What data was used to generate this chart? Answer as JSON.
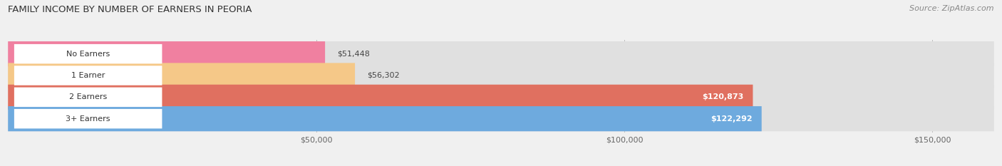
{
  "title": "FAMILY INCOME BY NUMBER OF EARNERS IN PEORIA",
  "source": "Source: ZipAtlas.com",
  "categories": [
    "No Earners",
    "1 Earner",
    "2 Earners",
    "3+ Earners"
  ],
  "values": [
    51448,
    56302,
    120873,
    122292
  ],
  "bar_colors": [
    "#f080a0",
    "#f5c888",
    "#e07060",
    "#6eaade"
  ],
  "label_colors": [
    "#555555",
    "#555555",
    "#ffffff",
    "#ffffff"
  ],
  "background_color": "#f0f0f0",
  "bar_bg_color": "#e0e0e0",
  "xlim": [
    0,
    160000
  ],
  "xticks": [
    50000,
    100000,
    150000
  ],
  "xtick_labels": [
    "$50,000",
    "$100,000",
    "$150,000"
  ],
  "bar_height": 0.58,
  "figsize": [
    14.06,
    2.33
  ],
  "dpi": 100
}
